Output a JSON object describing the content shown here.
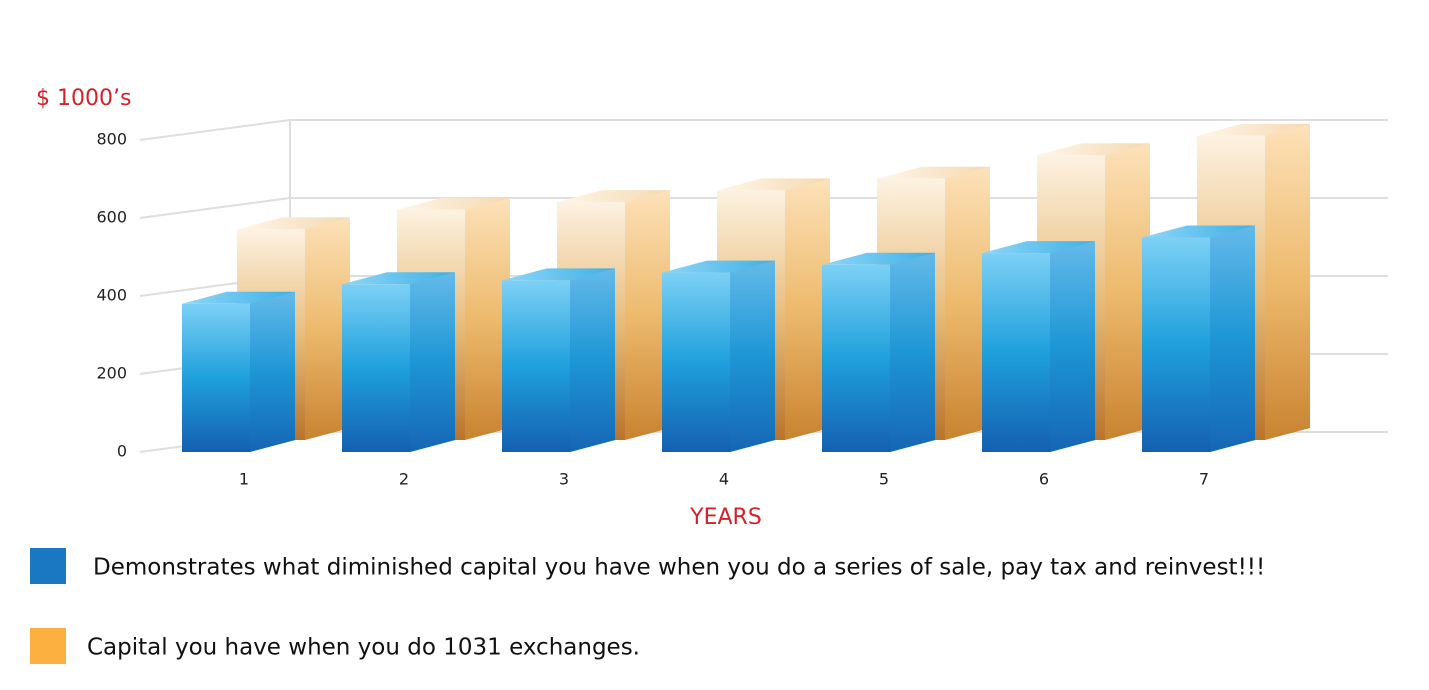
{
  "chart_data": {
    "type": "bar3d",
    "y_label": "$ 1000’s",
    "x_label": "YEARS",
    "categories": [
      "1",
      "2",
      "3",
      "4",
      "5",
      "6",
      "7"
    ],
    "series": [
      {
        "name": "Demonstrates what  diminished capital you have when you do a series of sale, pay tax and reinvest!!!",
        "color": "#1a78c2",
        "values": [
          380,
          430,
          440,
          460,
          480,
          510,
          550
        ]
      },
      {
        "name": "Capital you have when you do 1031 exchanges.",
        "color": "#fbb040",
        "values": [
          540,
          590,
          610,
          640,
          670,
          730,
          780
        ]
      }
    ],
    "ylim": [
      0,
      800
    ],
    "yticks": [
      0,
      200,
      400,
      600,
      800
    ],
    "grid": true
  }
}
